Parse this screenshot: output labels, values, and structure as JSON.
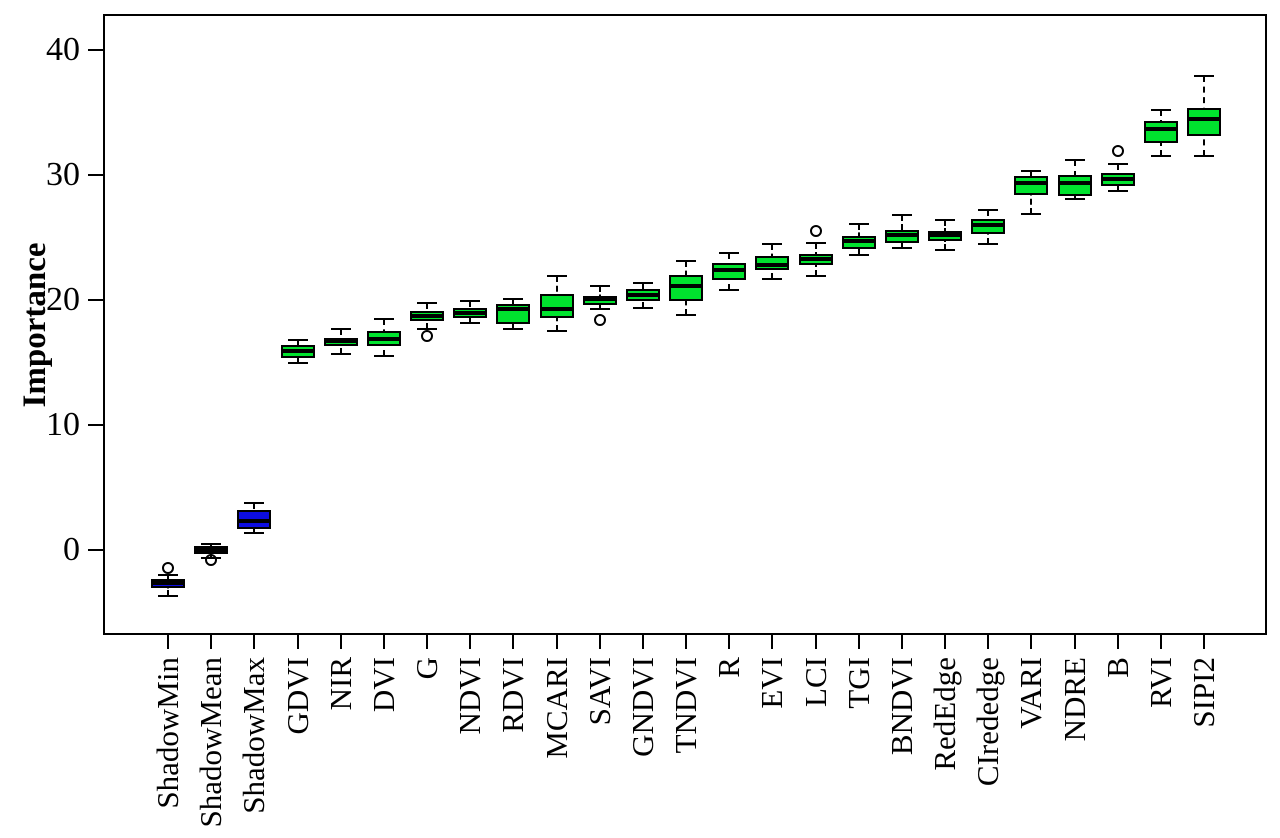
{
  "chart_data": {
    "type": "boxplot",
    "title": "",
    "xlabel": "",
    "ylabel": "Importance",
    "ylim": [
      -6.8,
      42.9
    ],
    "yticks": [
      0,
      10,
      20,
      30,
      40
    ],
    "grid": false,
    "legend": null,
    "colors": {
      "vegetation_index_fill": "#00e32e",
      "shadow_metric_fill": "#0d0de0",
      "stroke": "#000000",
      "background": "#ffffff"
    },
    "boxes": [
      {
        "label": "ShadowMin",
        "fill": "#0d0de0",
        "low": -3.7,
        "q1": -3.0,
        "median": -2.6,
        "q3": -2.3,
        "high": -2.0,
        "outliers": [
          -1.4
        ]
      },
      {
        "label": "ShadowMean",
        "fill": "#0d0de0",
        "low": -0.6,
        "q1": -0.3,
        "median": 0.0,
        "q3": 0.3,
        "high": 0.5,
        "outliers": [
          -0.8
        ]
      },
      {
        "label": "ShadowMax",
        "fill": "#0d0de0",
        "low": 1.4,
        "q1": 1.7,
        "median": 2.3,
        "q3": 3.2,
        "high": 3.8,
        "outliers": []
      },
      {
        "label": "GDVI",
        "fill": "#00e32e",
        "low": 15.0,
        "q1": 15.4,
        "median": 15.9,
        "q3": 16.4,
        "high": 16.8,
        "outliers": []
      },
      {
        "label": "NIR",
        "fill": "#00e32e",
        "low": 15.7,
        "q1": 16.3,
        "median": 16.7,
        "q3": 17.0,
        "high": 17.7,
        "outliers": []
      },
      {
        "label": "DVI",
        "fill": "#00e32e",
        "low": 15.5,
        "q1": 16.3,
        "median": 16.9,
        "q3": 17.5,
        "high": 18.5,
        "outliers": []
      },
      {
        "label": "G",
        "fill": "#00e32e",
        "low": 17.7,
        "q1": 18.3,
        "median": 18.7,
        "q3": 19.1,
        "high": 19.8,
        "outliers": [
          17.1
        ]
      },
      {
        "label": "NDVI",
        "fill": "#00e32e",
        "low": 18.2,
        "q1": 18.6,
        "median": 19.0,
        "q3": 19.4,
        "high": 19.9,
        "outliers": []
      },
      {
        "label": "RDVI",
        "fill": "#00e32e",
        "low": 17.7,
        "q1": 18.1,
        "median": 19.3,
        "q3": 19.7,
        "high": 20.1,
        "outliers": []
      },
      {
        "label": "MCARI",
        "fill": "#00e32e",
        "low": 17.5,
        "q1": 18.6,
        "median": 19.3,
        "q3": 20.5,
        "high": 21.9,
        "outliers": []
      },
      {
        "label": "SAVI",
        "fill": "#00e32e",
        "low": 19.3,
        "q1": 19.6,
        "median": 20.1,
        "q3": 20.3,
        "high": 21.1,
        "outliers": [
          18.4
        ]
      },
      {
        "label": "GNDVI",
        "fill": "#00e32e",
        "low": 19.4,
        "q1": 19.9,
        "median": 20.4,
        "q3": 20.9,
        "high": 21.4,
        "outliers": []
      },
      {
        "label": "TNDVI",
        "fill": "#00e32e",
        "low": 18.8,
        "q1": 19.9,
        "median": 21.1,
        "q3": 22.0,
        "high": 23.1,
        "outliers": []
      },
      {
        "label": "R",
        "fill": "#00e32e",
        "low": 20.8,
        "q1": 21.6,
        "median": 22.4,
        "q3": 23.0,
        "high": 23.8,
        "outliers": []
      },
      {
        "label": "EVI",
        "fill": "#00e32e",
        "low": 21.7,
        "q1": 22.4,
        "median": 22.8,
        "q3": 23.5,
        "high": 24.5,
        "outliers": []
      },
      {
        "label": "LCI",
        "fill": "#00e32e",
        "low": 21.9,
        "q1": 22.8,
        "median": 23.3,
        "q3": 23.7,
        "high": 24.6,
        "outliers": [
          25.5
        ]
      },
      {
        "label": "TGI",
        "fill": "#00e32e",
        "low": 23.6,
        "q1": 24.1,
        "median": 24.7,
        "q3": 25.1,
        "high": 26.1,
        "outliers": []
      },
      {
        "label": "BNDVI",
        "fill": "#00e32e",
        "low": 24.2,
        "q1": 24.6,
        "median": 25.2,
        "q3": 25.6,
        "high": 26.8,
        "outliers": []
      },
      {
        "label": "RedEdge",
        "fill": "#00e32e",
        "low": 24.0,
        "q1": 24.7,
        "median": 25.2,
        "q3": 25.5,
        "high": 26.4,
        "outliers": []
      },
      {
        "label": "CIrededge",
        "fill": "#00e32e",
        "low": 24.5,
        "q1": 25.3,
        "median": 26.0,
        "q3": 26.5,
        "high": 27.2,
        "outliers": []
      },
      {
        "label": "VARI",
        "fill": "#00e32e",
        "low": 26.9,
        "q1": 28.4,
        "median": 29.4,
        "q3": 29.9,
        "high": 30.3,
        "outliers": []
      },
      {
        "label": "NDRE",
        "fill": "#00e32e",
        "low": 28.1,
        "q1": 28.3,
        "median": 29.4,
        "q3": 30.0,
        "high": 31.2,
        "outliers": []
      },
      {
        "label": "B",
        "fill": "#00e32e",
        "low": 28.7,
        "q1": 29.1,
        "median": 29.7,
        "q3": 30.2,
        "high": 30.9,
        "outliers": [
          31.9
        ]
      },
      {
        "label": "RVI",
        "fill": "#00e32e",
        "low": 31.5,
        "q1": 32.6,
        "median": 33.7,
        "q3": 34.3,
        "high": 35.2,
        "outliers": []
      },
      {
        "label": "SIPI2",
        "fill": "#00e32e",
        "low": 31.5,
        "q1": 33.1,
        "median": 34.5,
        "q3": 35.4,
        "high": 37.9,
        "outliers": []
      }
    ]
  }
}
